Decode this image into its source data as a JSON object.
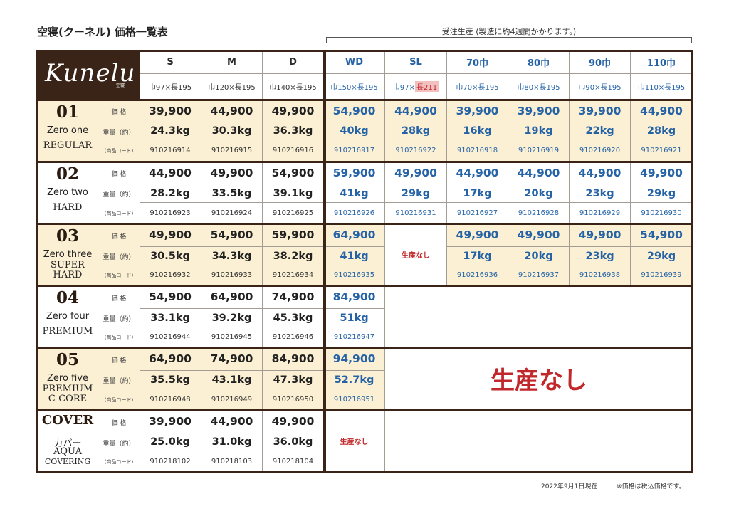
{
  "title": "空寝(クーネル) 価格一覧表",
  "order_note": "受注生産 (製造に約4週間かかります。)",
  "logo": {
    "text": "Kunelu",
    "mark": "空寝"
  },
  "sizes": [
    {
      "name": "S",
      "dim": "巾97×長195"
    },
    {
      "name": "M",
      "dim": "巾120×長195"
    },
    {
      "name": "D",
      "dim": "巾140×長195"
    },
    {
      "name": "WD",
      "dim": "巾150×長195"
    },
    {
      "name": "SL",
      "dim_pre": "巾97×",
      "dim_hl": "長211"
    },
    {
      "name": "70巾",
      "dim": "巾70×長195"
    },
    {
      "name": "80巾",
      "dim": "巾80×長195"
    },
    {
      "name": "90巾",
      "dim": "巾90×長195"
    },
    {
      "name": "110巾",
      "dim": "巾110×長195"
    }
  ],
  "labels": {
    "price": "価 格",
    "weight": "重量（約）",
    "code": "(商品コード)"
  },
  "models": [
    {
      "no": "01",
      "name_en": "Zero one",
      "grade": [
        "REGULAR"
      ],
      "prices": [
        "39,900",
        "44,900",
        "49,900",
        "54,900",
        "44,900",
        "39,900",
        "39,900",
        "39,900",
        "44,900"
      ],
      "weights": [
        "24.3kg",
        "30.3kg",
        "36.3kg",
        "40kg",
        "28kg",
        "16kg",
        "19kg",
        "22kg",
        "28kg"
      ],
      "codes": [
        "910216914",
        "910216915",
        "910216916",
        "910216917",
        "910216922",
        "910216918",
        "910216919",
        "910216920",
        "910216921"
      ]
    },
    {
      "no": "02",
      "name_en": "Zero two",
      "grade": [
        "HARD"
      ],
      "prices": [
        "44,900",
        "49,900",
        "54,900",
        "59,900",
        "49,900",
        "44,900",
        "44,900",
        "44,900",
        "49,900"
      ],
      "weights": [
        "28.2kg",
        "33.5kg",
        "39.1kg",
        "41kg",
        "29kg",
        "17kg",
        "20kg",
        "23kg",
        "29kg"
      ],
      "codes": [
        "910216923",
        "910216924",
        "910216925",
        "910216926",
        "910216931",
        "910216927",
        "910216928",
        "910216929",
        "910216930"
      ]
    },
    {
      "no": "03",
      "name_en": "Zero three",
      "grade": [
        "SUPER",
        "HARD"
      ],
      "prices": [
        "49,900",
        "54,900",
        "59,900",
        "64,900",
        "",
        "49,900",
        "49,900",
        "49,900",
        "54,900"
      ],
      "weights": [
        "30.5kg",
        "34.3kg",
        "38.2kg",
        "41kg",
        "",
        "17kg",
        "20kg",
        "23kg",
        "29kg"
      ],
      "codes": [
        "910216932",
        "910216933",
        "910216934",
        "910216935",
        "",
        "910216936",
        "910216937",
        "910216938",
        "910216939"
      ]
    },
    {
      "no": "04",
      "name_en": "Zero four",
      "grade": [
        "PREMIUM"
      ],
      "prices": [
        "54,900",
        "64,900",
        "74,900",
        "84,900"
      ],
      "weights": [
        "33.1kg",
        "39.2kg",
        "45.3kg",
        "51kg"
      ],
      "codes": [
        "910216944",
        "910216945",
        "910216946",
        "910216947"
      ]
    },
    {
      "no": "05",
      "name_en": "Zero five",
      "grade": [
        "PREMIUM",
        "C-CORE"
      ],
      "prices": [
        "64,900",
        "74,900",
        "84,900",
        "94,900"
      ],
      "weights": [
        "35.5kg",
        "43.1kg",
        "47.3kg",
        "52.7kg"
      ],
      "codes": [
        "910216948",
        "910216949",
        "910216950",
        "910216951"
      ]
    },
    {
      "no": "COVER",
      "name_en": "カバー",
      "grade": [
        "AQUA",
        "COVERING"
      ],
      "prices": [
        "39,900",
        "44,900",
        "49,900"
      ],
      "weights": [
        "25.0kg",
        "31.0kg",
        "36.0kg"
      ],
      "codes": [
        "910218102",
        "910218103",
        "910218104"
      ]
    }
  ],
  "not_produced_small": "生産なし",
  "not_produced_big": "生産なし",
  "footer_date": "2022年9月1日現在",
  "footer_note": "※価格は税込価格です。"
}
